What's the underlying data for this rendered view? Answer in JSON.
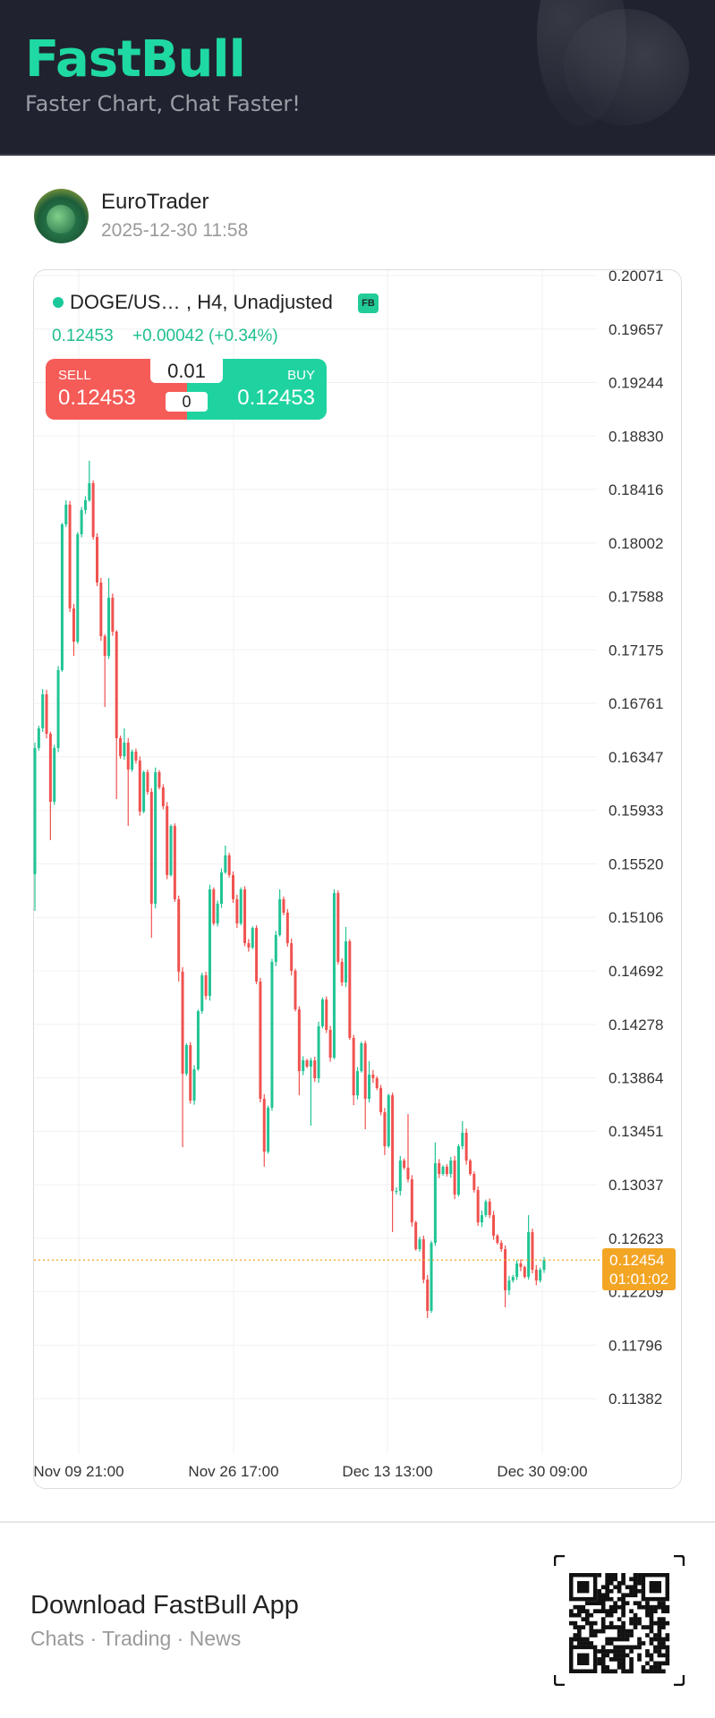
{
  "header": {
    "logo": "FastBull",
    "tagline": "Faster Chart, Chat Faster!"
  },
  "post": {
    "author": "EuroTrader",
    "timestamp": "2025-12-30 11:58"
  },
  "chart_header": {
    "symbol": "DOGE/US…",
    "details": ", H4, Unadjusted",
    "badge": "FB",
    "price": "0.12453",
    "change": "+0.00042 (+0.34%)"
  },
  "trade": {
    "sell_label": "SELL",
    "sell_price": "0.12453",
    "buy_label": "BUY",
    "buy_price": "0.12453",
    "lot": "0.01",
    "quantity": "0"
  },
  "last_price": {
    "price": "0.12454",
    "countdown": "01:01:02"
  },
  "colors": {
    "up": "#21c495",
    "down": "#f0524f",
    "brand": "#1fd9a2",
    "last_price": "#f3a524"
  },
  "chart_data": {
    "type": "candlestick",
    "timeframe": "H4",
    "y_ticks": [
      "0.20071",
      "0.19657",
      "0.19244",
      "0.18830",
      "0.18416",
      "0.18002",
      "0.17588",
      "0.17175",
      "0.16761",
      "0.16347",
      "0.15933",
      "0.15520",
      "0.15106",
      "0.14692",
      "0.14278",
      "0.13864",
      "0.13451",
      "0.13037",
      "0.12623",
      "0.12209",
      "0.11796",
      "0.11382"
    ],
    "x_ticks": [
      "Nov 09 21:00",
      "Nov 26 17:00",
      "Dec 13 13:00",
      "Dec 30 09:00"
    ],
    "ylim": [
      0.111,
      0.201
    ],
    "grid": true,
    "first_open": 0.1544,
    "close": [
      0.16416,
      0.16568,
      0.16831,
      0.16526,
      0.16,
      0.16416,
      0.17018,
      0.18146,
      0.18299,
      0.17496,
      0.17239,
      0.1807,
      0.18257,
      0.18333,
      0.18465,
      0.18049,
      0.17696,
      0.17281,
      0.17129,
      0.17579,
      0.17316,
      0.16492,
      0.16353,
      0.16457,
      0.16249,
      0.16388,
      0.16319,
      0.15924,
      0.16229,
      0.16076,
      0.15211,
      0.16229,
      0.16111,
      0.15966,
      0.15433,
      0.15813,
      0.15246,
      0.14685,
      0.13896,
      0.14117,
      0.13688,
      0.1393,
      0.1438,
      0.14657,
      0.14498,
      0.15322,
      0.15059,
      0.15211,
      0.15453,
      0.15585,
      0.15433,
      0.15246,
      0.15059,
      0.15322,
      0.14906,
      0.14872,
      0.15024,
      0.14609,
      0.13702,
      0.13293,
      0.13633,
      0.14761,
      0.14969,
      0.15246,
      0.15142,
      0.14906,
      0.14692,
      0.14394,
      0.13916,
      0.13999,
      0.13951,
      0.13999,
      0.13861,
      0.14263,
      0.1447,
      0.14235,
      0.1402,
      0.15294,
      0.14761,
      0.14602,
      0.1492,
      0.14173,
      0.13729,
      0.13916,
      0.14131,
      0.13702,
      0.13889,
      0.13861,
      0.13785,
      0.13598,
      0.13335,
      0.13729,
      0.12989,
      0.12989,
      0.13224,
      0.13169,
      0.13079,
      0.12746,
      0.12539,
      0.12615,
      0.12303,
      0.12061,
      0.12587,
      0.13203,
      0.1312,
      0.13176,
      0.1312,
      0.13224,
      0.12961,
      0.13335,
      0.13439,
      0.13224,
      0.1312,
      0.12996,
      0.12746,
      0.12802,
      0.12906,
      0.12802,
      0.12643,
      0.12587,
      0.12539,
      0.1222,
      0.12296,
      0.12324,
      0.12428,
      0.124,
      0.12324,
      0.1267,
      0.12379,
      0.12296,
      0.12379,
      0.12454
    ],
    "wick_highs": [
      {
        "candle": 0,
        "value": 0.16457
      },
      {
        "candle": 2,
        "value": 0.16873
      },
      {
        "candle": 8,
        "value": 0.18333
      },
      {
        "candle": 14,
        "value": 0.18638
      },
      {
        "candle": 19,
        "value": 0.17731
      },
      {
        "candle": 23,
        "value": 0.16568
      },
      {
        "candle": 49,
        "value": 0.15661
      },
      {
        "candle": 63,
        "value": 0.15322
      },
      {
        "candle": 77,
        "value": 0.15322
      },
      {
        "candle": 80,
        "value": 0.15031
      },
      {
        "candle": 86,
        "value": 0.13993
      },
      {
        "candle": 96,
        "value": 0.13584
      },
      {
        "candle": 103,
        "value": 0.13363
      },
      {
        "candle": 110,
        "value": 0.13529
      },
      {
        "candle": 127,
        "value": 0.12802
      }
    ],
    "wick_lows": [
      {
        "candle": 0,
        "value": 0.15156
      },
      {
        "candle": 4,
        "value": 0.15703
      },
      {
        "candle": 10,
        "value": 0.17129
      },
      {
        "candle": 18,
        "value": 0.16734
      },
      {
        "candle": 21,
        "value": 0.16021
      },
      {
        "candle": 24,
        "value": 0.15813
      },
      {
        "candle": 30,
        "value": 0.14948
      },
      {
        "candle": 37,
        "value": 0.14609
      },
      {
        "candle": 38,
        "value": 0.13328
      },
      {
        "candle": 59,
        "value": 0.13176
      },
      {
        "candle": 68,
        "value": 0.13729
      },
      {
        "candle": 71,
        "value": 0.13494
      },
      {
        "candle": 82,
        "value": 0.13653
      },
      {
        "candle": 85,
        "value": 0.13466
      },
      {
        "candle": 90,
        "value": 0.13266
      },
      {
        "candle": 92,
        "value": 0.1267
      },
      {
        "candle": 101,
        "value": 0.12006
      },
      {
        "candle": 121,
        "value": 0.12089
      }
    ],
    "last_price": 0.12454
  },
  "footer": {
    "title": "Download FastBull App",
    "subtitle": "Chats · Trading · News",
    "qr_icon": "qr-code"
  }
}
